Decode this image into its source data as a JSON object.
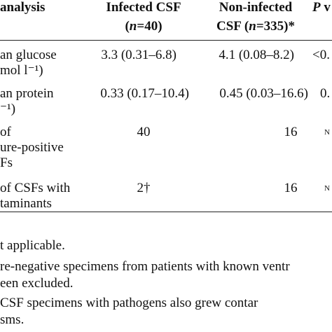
{
  "header": {
    "col_analysis": "analysis",
    "col_infected_line1": "Infected CSF",
    "col_infected_line2_pre": "(",
    "col_infected_n": "n",
    "col_infected_line2_post": "=40)",
    "col_noninfected_line1": "Non-infected",
    "col_noninfected_line2_pre": "CSF (",
    "col_noninfected_n": "n",
    "col_noninfected_line2_post": "=335)*",
    "col_p_italic": "P",
    "col_p_rest": " v"
  },
  "rows": [
    {
      "label_line1": "an glucose",
      "label_line2": "mol l⁻¹)",
      "infected": "3.3 (0.31–6.8)",
      "noninfected": "4.1 (0.08–8.2)",
      "p": "<0."
    },
    {
      "label_line1": "an protein",
      "label_line2": "⁻¹)",
      "infected": "0.33 (0.17–10.4)",
      "noninfected": "0.45 (0.03–16.6)",
      "p": "0."
    },
    {
      "label_line1": "of",
      "label_line2": "ure-positive",
      "label_line3": "Fs",
      "infected": "40",
      "noninfected": "16",
      "p": "N"
    },
    {
      "label_line1": "of CSFs with",
      "label_line2": "taminants",
      "infected": "2†",
      "noninfected": "16",
      "p": "N"
    }
  ],
  "footnotes": {
    "line1": "t applicable.",
    "line2": "re-negative specimens from patients with known ventr",
    "line3": "een excluded.",
    "line4": "CSF specimens with pathogens also grew contar",
    "line5": "sms."
  }
}
